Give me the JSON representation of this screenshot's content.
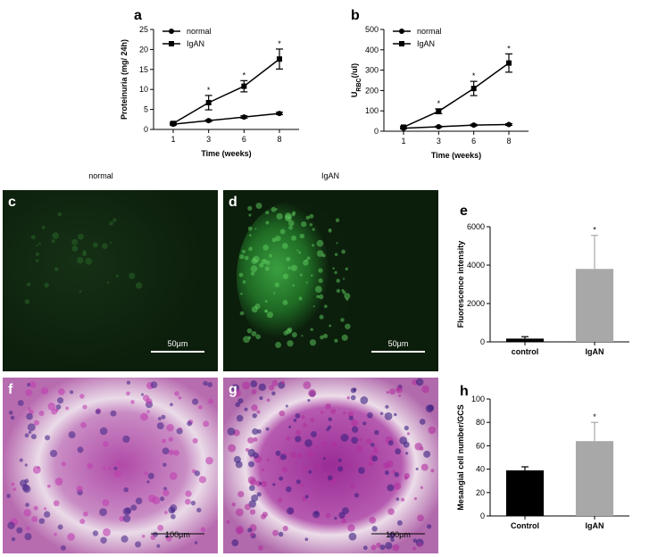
{
  "chart_data": [
    {
      "type": "line",
      "letter": "a",
      "xlabel": "Time (weeks)",
      "ylabel_parts": [
        "Proteinuria (mg/ 24h)"
      ],
      "categories": [
        "1",
        "3",
        "6",
        "8"
      ],
      "series": [
        {
          "name": "normal",
          "color": "#000000",
          "marker": "circle",
          "values": [
            1.3,
            2.2,
            3.1,
            4.0
          ],
          "errors": [
            0.2,
            0.2,
            0.3,
            0.3
          ]
        },
        {
          "name": "IgAN",
          "color": "#000000",
          "marker": "square",
          "values": [
            1.5,
            6.7,
            10.8,
            17.6
          ],
          "errors": [
            0.3,
            1.8,
            1.4,
            2.5
          ]
        }
      ],
      "ylim": [
        0,
        25
      ],
      "yticks": [
        0,
        5,
        10,
        15,
        20,
        25
      ],
      "legend": "upper left",
      "annotations": [
        {
          "text": "*",
          "category": "3"
        },
        {
          "text": "*",
          "category": "6"
        },
        {
          "text": "*",
          "category": "8"
        }
      ]
    },
    {
      "type": "line",
      "letter": "b",
      "xlabel": "Time (weeks)",
      "ylabel_parts": [
        "U",
        "RBC",
        "(/ul)"
      ],
      "categories": [
        "1",
        "3",
        "6",
        "8"
      ],
      "series": [
        {
          "name": "normal",
          "color": "#000000",
          "marker": "circle",
          "values": [
            15,
            22,
            30,
            33
          ],
          "errors": [
            3,
            3,
            4,
            4
          ]
        },
        {
          "name": "IgAN",
          "color": "#000000",
          "marker": "square",
          "values": [
            20,
            98,
            210,
            335
          ],
          "errors": [
            5,
            12,
            35,
            45
          ]
        }
      ],
      "ylim": [
        0,
        500
      ],
      "yticks": [
        0,
        100,
        200,
        300,
        400,
        500
      ],
      "legend": "upper left",
      "annotations": [
        {
          "text": "*",
          "category": "3"
        },
        {
          "text": "*",
          "category": "6"
        },
        {
          "text": "*",
          "category": "8"
        }
      ]
    },
    {
      "type": "bar",
      "letter": "e",
      "ylabel_parts": [
        "Fluorescence intensity"
      ],
      "categories": [
        "control",
        "IgAN"
      ],
      "values": [
        170,
        3800
      ],
      "errors": [
        100,
        1750
      ],
      "colors": [
        "#000000",
        "#a8a8a8"
      ],
      "ylim": [
        0,
        6000
      ],
      "yticks": [
        0,
        2000,
        4000,
        6000
      ],
      "annotations": [
        {
          "text": "*",
          "category": "IgAN"
        }
      ]
    },
    {
      "type": "bar",
      "letter": "h",
      "ylabel_parts": [
        "Mesangial cell number/GCS"
      ],
      "categories": [
        "Control",
        "IgAN"
      ],
      "values": [
        39,
        64
      ],
      "errors": [
        3,
        16
      ],
      "colors": [
        "#000000",
        "#a8a8a8"
      ],
      "ylim": [
        0,
        100
      ],
      "yticks": [
        0,
        20,
        40,
        60,
        80,
        100
      ],
      "annotations": [
        {
          "text": "*",
          "category": "IgAN"
        }
      ]
    }
  ],
  "column_titles": [
    "normal",
    "IgAN"
  ],
  "panels": [
    {
      "letter": "c",
      "scale_bar": "50μm"
    },
    {
      "letter": "d",
      "scale_bar": "50μm"
    },
    {
      "letter": "f",
      "scale_bar": "100μm"
    },
    {
      "letter": "g",
      "scale_bar": "100μm"
    }
  ]
}
